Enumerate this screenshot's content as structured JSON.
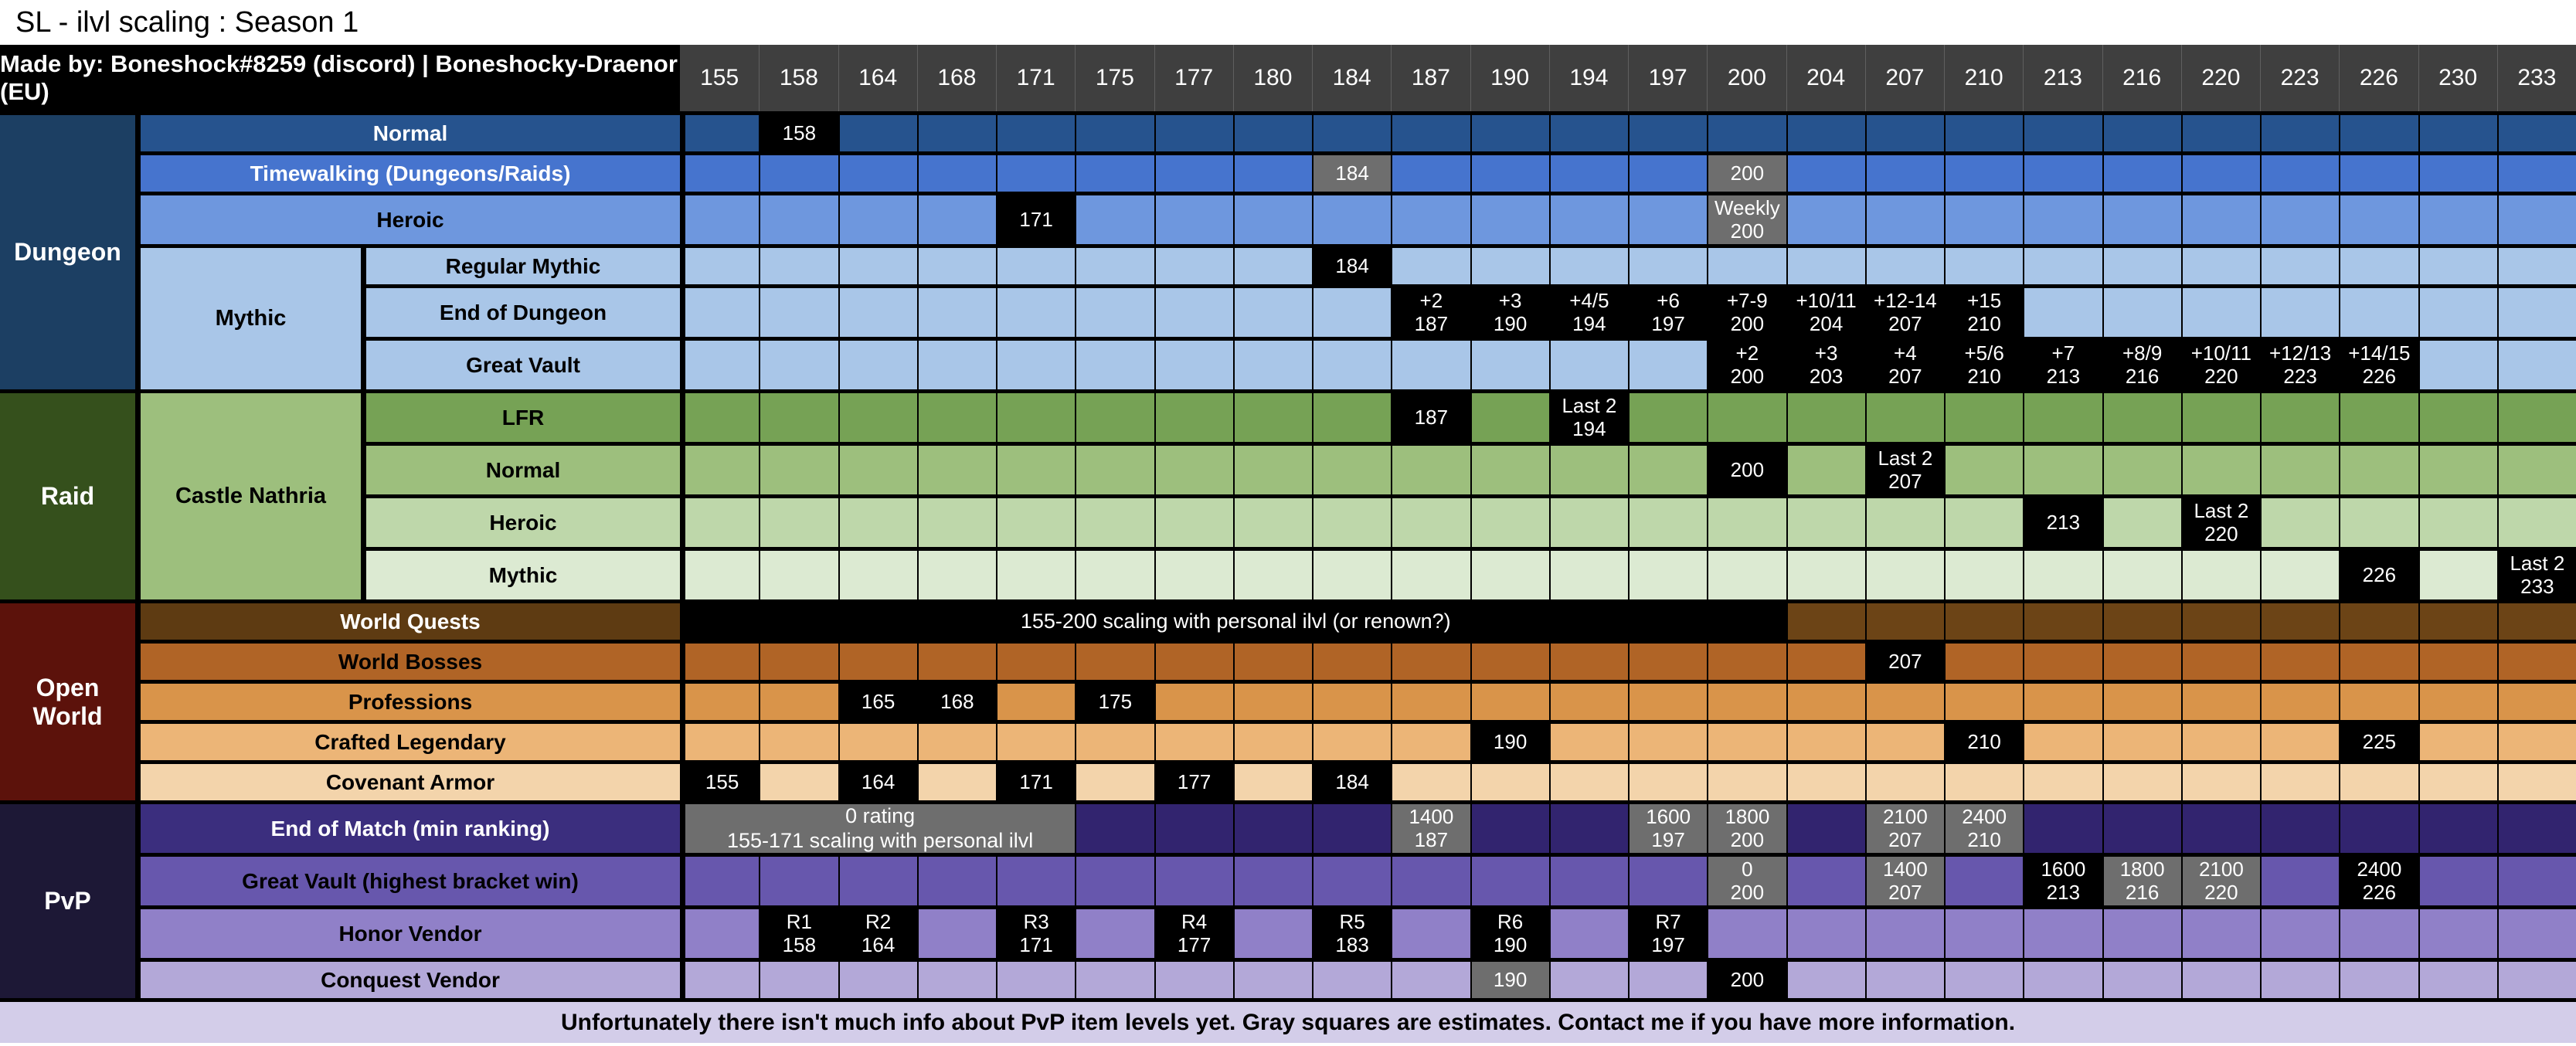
{
  "title": "SL - ilvl scaling : Season 1",
  "made_by": "Made by: Boneshock#8259 (discord) | Boneshocky-Draenor (EU)",
  "footer": "Unfortunately there isn't much info about PvP item levels yet. Gray squares are estimates. Contact me if you have more information.",
  "palette": {
    "black_cell": "#000000",
    "gray_cell": "#6E6E6E",
    "header_bg": "#3F3F3F",
    "header_line": "#5F5F5F",
    "footer_bg": "#D3CDE9",
    "border": "#000000"
  },
  "chart_data": {
    "type": "table",
    "title": "SL - ilvl scaling : Season 1",
    "columns": [
      "155",
      "158",
      "164",
      "168",
      "171",
      "175",
      "177",
      "180",
      "184",
      "187",
      "190",
      "194",
      "197",
      "200",
      "204",
      "207",
      "210",
      "213",
      "216",
      "220",
      "223",
      "226",
      "230",
      "233"
    ],
    "categories": [
      {
        "label": "Dungeon",
        "bg": "#1C3F63",
        "row": 1,
        "span": 6
      },
      {
        "label": "Raid",
        "bg": "#35501C",
        "row": 7,
        "span": 4
      },
      {
        "label": "Open World",
        "bg": "#5C120B",
        "row": 11,
        "span": 5
      },
      {
        "label": "PvP",
        "bg": "#1D1836",
        "row": 16,
        "span": 4
      }
    ],
    "subcategories": [
      {
        "label": "Mythic",
        "bg": "#A9C6E8",
        "row": 4,
        "span": 3
      },
      {
        "label": "Castle Nathria",
        "bg": "#9DBF7D",
        "row": 7,
        "span": 4
      }
    ],
    "rows": [
      {
        "id": "dungeon-normal",
        "label": "Normal",
        "wide": true,
        "size": "s",
        "bg": "#26538E",
        "fg": "#ffffff",
        "cells": {
          "158": {
            "t": "158"
          }
        }
      },
      {
        "id": "timewalking",
        "label": "Timewalking (Dungeons/Raids)",
        "wide": true,
        "size": "s",
        "bg": "#4674CE",
        "fg": "#ffffff",
        "cells": {
          "184": {
            "t": "184",
            "g": true
          },
          "200": {
            "t": "200",
            "g": true
          }
        }
      },
      {
        "id": "dungeon-heroic",
        "label": "Heroic",
        "wide": true,
        "size": "d",
        "bg": "#6E97DE",
        "fg": "#000000",
        "cells": {
          "171": {
            "t": "171"
          },
          "200": {
            "t": "Weekly\n200",
            "g": true
          }
        }
      },
      {
        "id": "regular-mythic",
        "label": "Regular Mythic",
        "wide": false,
        "size": "s",
        "bg": "#A9C6E8",
        "fg": "#000000",
        "cells": {
          "184": {
            "t": "184"
          }
        }
      },
      {
        "id": "end-of-dungeon",
        "label": "End of Dungeon",
        "wide": false,
        "size": "d",
        "bg": "#A9C6E8",
        "fg": "#000000",
        "cells": {
          "187": {
            "t": "+2\n187"
          },
          "190": {
            "t": "+3\n190"
          },
          "194": {
            "t": "+4/5\n194"
          },
          "197": {
            "t": "+6\n197"
          },
          "200": {
            "t": "+7-9\n200"
          },
          "204": {
            "t": "+10/11\n204"
          },
          "207": {
            "t": "+12-14\n207"
          },
          "210": {
            "t": "+15\n210"
          }
        }
      },
      {
        "id": "dungeon-great-vault",
        "label": "Great Vault",
        "wide": false,
        "size": "d",
        "bg": "#A9C6E8",
        "fg": "#000000",
        "cells": {
          "200": {
            "t": "+2\n200"
          },
          "204": {
            "t": "+3\n203"
          },
          "207": {
            "t": "+4\n207"
          },
          "210": {
            "t": "+5/6\n210"
          },
          "213": {
            "t": "+7\n213"
          },
          "216": {
            "t": "+8/9\n216"
          },
          "220": {
            "t": "+10/11\n220"
          },
          "223": {
            "t": "+12/13\n223"
          },
          "226": {
            "t": "+14/15\n226"
          }
        }
      },
      {
        "id": "lfr",
        "label": "LFR",
        "wide": false,
        "size": "d",
        "bg": "#76A255",
        "fg": "#000000",
        "cells": {
          "187": {
            "t": "187"
          },
          "194": {
            "t": "Last 2\n194"
          }
        }
      },
      {
        "id": "raid-normal",
        "label": "Normal",
        "wide": false,
        "size": "d",
        "bg": "#9DBF7D",
        "fg": "#000000",
        "cells": {
          "200": {
            "t": "200"
          },
          "207": {
            "t": "Last 2\n207"
          }
        }
      },
      {
        "id": "raid-heroic",
        "label": "Heroic",
        "wide": false,
        "size": "d",
        "bg": "#BED7AA",
        "fg": "#000000",
        "cells": {
          "213": {
            "t": "213"
          },
          "220": {
            "t": "Last 2\n220"
          }
        }
      },
      {
        "id": "raid-mythic",
        "label": "Mythic",
        "wide": false,
        "size": "d",
        "bg": "#DCEAD2",
        "fg": "#000000",
        "cells": {
          "226": {
            "t": "226"
          },
          "233": {
            "t": "Last 2\n233"
          }
        }
      },
      {
        "id": "world-quests",
        "label": "World Quests",
        "wide": true,
        "size": "s",
        "bg": "#6C4416",
        "lbg": "#5E3B12",
        "fg": "#ffffff",
        "banner": {
          "from": "155",
          "span": 14,
          "text": "155-200 scaling with personal ilvl (or renown?)",
          "gray": false
        }
      },
      {
        "id": "world-bosses",
        "label": "World Bosses",
        "wide": true,
        "size": "s",
        "bg": "#B06426",
        "fg": "#000000",
        "cells": {
          "207": {
            "t": "207"
          }
        }
      },
      {
        "id": "professions",
        "label": "Professions",
        "wide": true,
        "size": "s",
        "bg": "#D9944A",
        "fg": "#000000",
        "cells": {
          "164": {
            "t": "165"
          },
          "168": {
            "t": "168"
          },
          "175": {
            "t": "175"
          }
        }
      },
      {
        "id": "crafted-legendary",
        "label": "Crafted Legendary",
        "wide": true,
        "size": "s",
        "bg": "#ECB577",
        "fg": "#000000",
        "cells": {
          "190": {
            "t": "190"
          },
          "210": {
            "t": "210"
          },
          "226": {
            "t": "225"
          }
        }
      },
      {
        "id": "covenant-armor",
        "label": "Covenant Armor",
        "wide": true,
        "size": "s",
        "bg": "#F3D4AB",
        "fg": "#000000",
        "cells": {
          "155": {
            "t": "155"
          },
          "164": {
            "t": "164"
          },
          "171": {
            "t": "171"
          },
          "177": {
            "t": "177"
          },
          "184": {
            "t": "184"
          }
        }
      },
      {
        "id": "end-of-match",
        "label": "End of Match (min ranking)",
        "wide": true,
        "size": "d",
        "bg": "#32246F",
        "lbg": "#3B2E7E",
        "fg": "#ffffff",
        "banner": {
          "from": "155",
          "span": 5,
          "text": "0 rating\n155-171 scaling with personal ilvl",
          "gray": true
        },
        "cells": {
          "187": {
            "t": "1400\n187",
            "g": true
          },
          "197": {
            "t": "1600\n197",
            "g": true
          },
          "200": {
            "t": "1800\n200",
            "g": true
          },
          "207": {
            "t": "2100\n207",
            "g": true
          },
          "210": {
            "t": "2400\n210",
            "g": true
          }
        }
      },
      {
        "id": "pvp-great-vault",
        "label": "Great Vault (highest bracket win)",
        "wide": true,
        "size": "d",
        "bg": "#6757AD",
        "fg": "#000000",
        "cells": {
          "200": {
            "t": "0\n200",
            "g": true
          },
          "207": {
            "t": "1400\n207",
            "g": true
          },
          "213": {
            "t": "1600\n213"
          },
          "216": {
            "t": "1800\n216",
            "g": true
          },
          "220": {
            "t": "2100\n220",
            "g": true
          },
          "226": {
            "t": "2400\n226"
          }
        }
      },
      {
        "id": "honor-vendor",
        "label": "Honor Vendor",
        "wide": true,
        "size": "d",
        "bg": "#9080C8",
        "fg": "#000000",
        "cells": {
          "158": {
            "t": "R1\n158"
          },
          "164": {
            "t": "R2\n164"
          },
          "171": {
            "t": "R3\n171"
          },
          "177": {
            "t": "R4\n177"
          },
          "184": {
            "t": "R5\n183"
          },
          "190": {
            "t": "R6\n190"
          },
          "197": {
            "t": "R7\n197"
          }
        }
      },
      {
        "id": "conquest-vendor",
        "label": "Conquest Vendor",
        "wide": true,
        "size": "s",
        "bg": "#B3A8D8",
        "fg": "#000000",
        "cells": {
          "190": {
            "t": "190",
            "g": true
          },
          "200": {
            "t": "200"
          }
        }
      }
    ]
  }
}
